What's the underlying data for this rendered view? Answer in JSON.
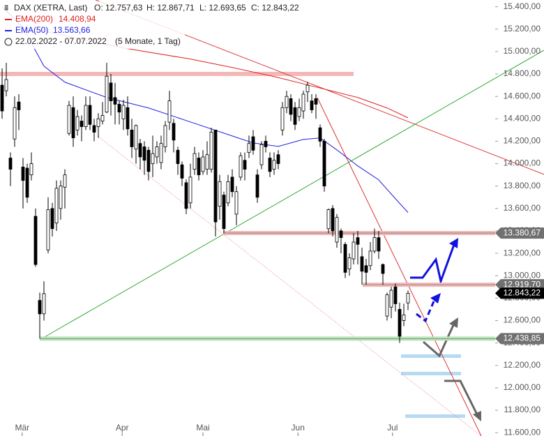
{
  "chart_data": {
    "type": "candlestick",
    "header": {
      "instrument": "DAX (XETRA, Last)",
      "ohlc_labels": [
        "O: 12.757,63",
        "H: 12.867,71",
        "L: 12.693,65",
        "C: 12.843,22"
      ],
      "range": "22.02.2022 - 07.07.2022",
      "span": "(5 Monate, 1 Tag)"
    },
    "ylim": [
      11570,
      15460
    ],
    "yticks": [
      {
        "value": 15400,
        "label": "15.400,00"
      },
      {
        "value": 15200,
        "label": "15.200,00"
      },
      {
        "value": 15000,
        "label": "15.000,00"
      },
      {
        "value": 14800,
        "label": "14.800,00"
      },
      {
        "value": 14600,
        "label": "14.600,00"
      },
      {
        "value": 14400,
        "label": "14.400,00"
      },
      {
        "value": 14200,
        "label": "14.200,00"
      },
      {
        "value": 14000,
        "label": "14.000,00"
      },
      {
        "value": 13800,
        "label": "13.800,00"
      },
      {
        "value": 13600,
        "label": "13.600,00"
      },
      {
        "value": 13400,
        "label": "13.400,00"
      },
      {
        "value": 13200,
        "label": "13.200,00"
      },
      {
        "value": 13000,
        "label": "13.000,00"
      },
      {
        "value": 12800,
        "label": "12.800,00"
      },
      {
        "value": 12600,
        "label": "12.600,00"
      },
      {
        "value": 12400,
        "label": "12.400,00"
      },
      {
        "value": 12200,
        "label": "12.200,00"
      },
      {
        "value": 12000,
        "label": "12.000,00"
      },
      {
        "value": 11800,
        "label": "11.800,00"
      },
      {
        "value": 11600,
        "label": "11.600,00"
      }
    ],
    "xticks": [
      {
        "value": 4.8,
        "label": "Mär"
      },
      {
        "value": 28.7,
        "label": "Apr"
      },
      {
        "value": 48,
        "label": "Mai"
      },
      {
        "value": 70.7,
        "label": "Jun"
      },
      {
        "value": 93.3,
        "label": "Jul"
      }
    ],
    "open": [
      14700,
      14650,
      14050,
      14220,
      14550,
      13970,
      13960,
      13900,
      13530,
      12780,
      12660,
      13230,
      13600,
      13470,
      13600,
      13790,
      14270,
      14500,
      14300,
      14380,
      14330,
      14520,
      14340,
      14330,
      14380,
      14460,
      14720,
      14590,
      14530,
      14400,
      14500,
      14300,
      14130,
      14180,
      14150,
      14120,
      14000,
      14060,
      14010,
      14150,
      14370,
      14360,
      14120,
      13990,
      13830,
      13650,
      13950,
      14050,
      13930,
      13950,
      13950,
      14300,
      13620,
      13720,
      13650,
      13880,
      13550,
      13880,
      14030,
      14100,
      14240,
      13900,
      13990,
      14200,
      14050,
      13950,
      14080,
      14300,
      14500,
      14580,
      14500,
      14420,
      14470,
      14640,
      14560,
      14580,
      14320,
      14200,
      13420,
      13600,
      13300,
      13400,
      13280,
      13060,
      13150,
      13340,
      13170,
      13090,
      13090,
      13220,
      13340,
      13100,
      12640,
      12720,
      12900,
      12700,
      12600,
      12757.63
    ],
    "high": [
      14850,
      14900,
      14100,
      14600,
      14620,
      14050,
      14000,
      14100,
      13600,
      12850,
      12950,
      13700,
      13650,
      13850,
      13850,
      13950,
      14560,
      14600,
      14480,
      14430,
      14600,
      14600,
      14400,
      14450,
      14550,
      14900,
      14800,
      14720,
      14560,
      14570,
      14600,
      14400,
      14350,
      14220,
      14200,
      14150,
      14250,
      14200,
      14250,
      14380,
      14650,
      14400,
      14150,
      14020,
      13860,
      14000,
      14150,
      14100,
      14120,
      14200,
      14320,
      14300,
      13900,
      13750,
      13900,
      13950,
      13800,
      14100,
      14100,
      14250,
      14300,
      13950,
      14200,
      14250,
      14100,
      14100,
      14120,
      14550,
      14650,
      14620,
      14550,
      14580,
      14650,
      14730,
      14620,
      14620,
      14350,
      14220,
      13600,
      13630,
      13550,
      13420,
      13300,
      13200,
      13380,
      13400,
      13250,
      13150,
      13300,
      13420,
      13400,
      13110,
      12850,
      12900,
      12930,
      12760,
      12750,
      12867.71
    ],
    "low": [
      14400,
      14600,
      13800,
      14150,
      14300,
      13600,
      13650,
      13850,
      13080,
      12438.85,
      12600,
      13200,
      13350,
      13400,
      13500,
      13600,
      14250,
      14150,
      14250,
      14200,
      14300,
      14300,
      14200,
      14230,
      14350,
      14450,
      14430,
      14350,
      14350,
      14300,
      14250,
      14050,
      14000,
      13950,
      13900,
      13850,
      13880,
      14000,
      13950,
      14100,
      14300,
      14100,
      13900,
      13800,
      13550,
      13600,
      13900,
      13850,
      13900,
      13900,
      13920,
      13350,
      13500,
      13380.67,
      13620,
      13700,
      13450,
      13850,
      13850,
      14050,
      14080,
      13650,
      13950,
      14100,
      13880,
      13900,
      13950,
      14250,
      14450,
      14380,
      14300,
      14380,
      14400,
      14550,
      14450,
      14400,
      14150,
      13750,
      13380,
      13350,
      13250,
      13200,
      12980,
      13000,
      13100,
      13100,
      12920,
      12920,
      13050,
      13200,
      13150,
      12920,
      12600,
      12620,
      12680,
      12400,
      12550,
      12693.65
    ],
    "close": [
      14470,
      14750,
      13950,
      14500,
      14480,
      13850,
      13700,
      14000,
      13100,
      12660,
      12840,
      13590,
      13420,
      13780,
      13800,
      13900,
      14520,
      14230,
      14420,
      14330,
      14520,
      14350,
      14280,
      14400,
      14430,
      14780,
      14560,
      14530,
      14460,
      14520,
      14310,
      14150,
      14340,
      14060,
      14030,
      13930,
      14090,
      14150,
      14180,
      14340,
      14560,
      14210,
      14000,
      13870,
      13600,
      13880,
      14090,
      13900,
      14060,
      14080,
      14280,
      13480,
      13840,
      13420,
      13840,
      13750,
      13750,
      14070,
      13950,
      14180,
      14120,
      13700,
      14170,
      14150,
      13930,
      14030,
      14000,
      14500,
      14600,
      14440,
      14350,
      14500,
      14620,
      14700,
      14480,
      14530,
      14200,
      13800,
      13590,
      13400,
      13520,
      13340,
      13030,
      13160,
      13300,
      13280,
      13040,
      13030,
      13220,
      13340,
      13220,
      13020,
      12830,
      12870,
      12750,
      12460,
      12650,
      12843.22
    ],
    "series": [
      {
        "name": "EMA(200)",
        "last_label": "14.408,94",
        "color": "#e02020",
        "x": [
          10,
          20,
          30,
          45,
          55,
          65,
          75,
          85,
          92,
          97
        ],
        "values": [
          15182,
          15100,
          15026,
          14933,
          14858,
          14777,
          14684,
          14590,
          14497,
          14409
        ]
      },
      {
        "name": "EMA(50)",
        "last_label": "13.563,66",
        "color": "#2020e0",
        "x": [
          0,
          5,
          10,
          15,
          25,
          35,
          45,
          55,
          60,
          66,
          72,
          76,
          80,
          85,
          90,
          94,
          97
        ],
        "values": [
          15400,
          15213,
          14870,
          14727,
          14590,
          14497,
          14372,
          14247,
          14185,
          14154,
          14216,
          14229,
          14123,
          13980,
          13855,
          13687,
          13564
        ]
      }
    ],
    "levels": [
      {
        "value": 13380.67,
        "label": "13.380,67",
        "kind": "resistance"
      },
      {
        "value": 12919.7,
        "label": "12.919,70",
        "kind": "resistance"
      },
      {
        "value": 12843.22,
        "label": "12.843,22",
        "kind": "last"
      },
      {
        "value": 12438.85,
        "label": "12.438,85",
        "kind": "support"
      }
    ]
  }
}
